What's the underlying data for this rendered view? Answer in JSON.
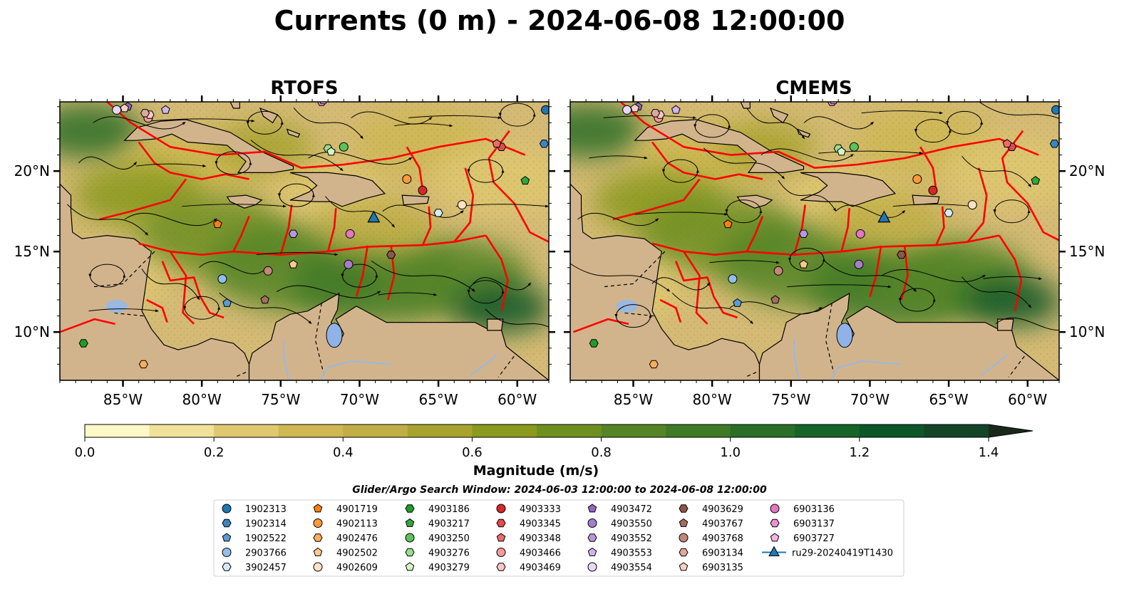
{
  "figure": {
    "title": "Currents (0 m) - 2024-06-08 12:00:00",
    "search_window": "Glider/Argo Search Window: 2024-06-03 12:00:00 to 2024-06-08 12:00:00"
  },
  "colors": {
    "land": "#d2b48c",
    "boundary": "#ff0000",
    "river": "#9ab8e0",
    "lake": "#8fb3e8",
    "glider": "#2077b4"
  },
  "colorbar": {
    "label": "Magnitude (m/s)",
    "ticks": [
      "0.0",
      "0.2",
      "0.4",
      "0.6",
      "0.8",
      "1.0",
      "1.2",
      "1.4"
    ],
    "levels": [
      0,
      0.1,
      0.2,
      0.3,
      0.4,
      0.5,
      0.6,
      0.7,
      0.8,
      0.9,
      1.0,
      1.1,
      1.2,
      1.3,
      1.4,
      1.5
    ],
    "colors": [
      "#fdf8c6",
      "#f0e29a",
      "#dfc870",
      "#cfb853",
      "#bfae45",
      "#a7a32e",
      "#8a9a1e",
      "#6e9020",
      "#558526",
      "#3f7a26",
      "#2a6e27",
      "#156428",
      "#0d5628",
      "#134426",
      "#173622",
      "#19281b"
    ],
    "extend": "max"
  },
  "chart_data": [
    {
      "type": "map",
      "title": "RTOFS",
      "variable": "Currents (0 m) magnitude",
      "units": "m/s",
      "xlim": [
        -89,
        -58
      ],
      "ylim": [
        7,
        24.3
      ],
      "xticks": [
        -85,
        -80,
        -75,
        -70,
        -65,
        -60
      ],
      "xticklabels": [
        "85°W",
        "80°W",
        "75°W",
        "70°W",
        "65°W",
        "60°W"
      ],
      "yticks": [
        10,
        15,
        20
      ],
      "yticklabels": [
        "10°N",
        "15°N",
        "20°N"
      ],
      "ytick_side": "left"
    },
    {
      "type": "map",
      "title": "CMEMS",
      "variable": "Currents (0 m) magnitude",
      "units": "m/s",
      "xlim": [
        -89,
        -58
      ],
      "ylim": [
        7,
        24.3
      ],
      "xticks": [
        -85,
        -80,
        -75,
        -70,
        -65,
        -60
      ],
      "xticklabels": [
        "85°W",
        "80°W",
        "75°W",
        "70°W",
        "65°W",
        "60°W"
      ],
      "yticks": [
        10,
        15,
        20
      ],
      "yticklabels": [
        "10°N",
        "15°N",
        "20°N"
      ],
      "ytick_side": "right"
    }
  ],
  "legend": [
    {
      "id": "1902313",
      "marker": "circle",
      "color": "#1f77b4"
    },
    {
      "id": "1902314",
      "marker": "hexagon",
      "color": "#3a86c0"
    },
    {
      "id": "1902522",
      "marker": "pentagon",
      "color": "#5a9bd5"
    },
    {
      "id": "2903766",
      "marker": "circle",
      "color": "#8fc1e8"
    },
    {
      "id": "3902457",
      "marker": "hexagon",
      "color": "#d6eaf8"
    },
    {
      "id": "4901719",
      "marker": "pentagon",
      "color": "#ff7f0e"
    },
    {
      "id": "4902113",
      "marker": "circle",
      "color": "#ff9a3c"
    },
    {
      "id": "4902476",
      "marker": "hexagon",
      "color": "#ffad5c"
    },
    {
      "id": "4902502",
      "marker": "pentagon",
      "color": "#ffc890"
    },
    {
      "id": "4902609",
      "marker": "circle",
      "color": "#ffe2c2"
    },
    {
      "id": "4903186",
      "marker": "hexagon",
      "color": "#1e9d2a"
    },
    {
      "id": "4903217",
      "marker": "pentagon",
      "color": "#33a838"
    },
    {
      "id": "4903250",
      "marker": "circle",
      "color": "#5cc25a"
    },
    {
      "id": "4903276",
      "marker": "hexagon",
      "color": "#98df8a"
    },
    {
      "id": "4903279",
      "marker": "pentagon",
      "color": "#d4f5c8"
    },
    {
      "id": "4903333",
      "marker": "circle",
      "color": "#d62728"
    },
    {
      "id": "4903345",
      "marker": "hexagon",
      "color": "#e34a4a"
    },
    {
      "id": "4903348",
      "marker": "pentagon",
      "color": "#ec6b6b"
    },
    {
      "id": "4903466",
      "marker": "circle",
      "color": "#f59a9a"
    },
    {
      "id": "4903469",
      "marker": "hexagon",
      "color": "#fbc6c6"
    },
    {
      "id": "4903472",
      "marker": "pentagon",
      "color": "#9467bd"
    },
    {
      "id": "4903550",
      "marker": "circle",
      "color": "#a47ecb"
    },
    {
      "id": "4903552",
      "marker": "hexagon",
      "color": "#b897da"
    },
    {
      "id": "4903553",
      "marker": "pentagon",
      "color": "#cfb6ea"
    },
    {
      "id": "4903554",
      "marker": "circle",
      "color": "#e6d8f6"
    },
    {
      "id": "4903629",
      "marker": "hexagon",
      "color": "#8c564b"
    },
    {
      "id": "4903767",
      "marker": "pentagon",
      "color": "#a56c60"
    },
    {
      "id": "4903768",
      "marker": "circle",
      "color": "#c0877a"
    },
    {
      "id": "6903134",
      "marker": "hexagon",
      "color": "#dfa89d"
    },
    {
      "id": "6903135",
      "marker": "pentagon",
      "color": "#f6d0c6"
    },
    {
      "id": "6903136",
      "marker": "circle",
      "color": "#e377c2"
    },
    {
      "id": "6903137",
      "marker": "hexagon",
      "color": "#ec92d1"
    },
    {
      "id": "6903727",
      "marker": "pentagon",
      "color": "#f5b3e0"
    },
    {
      "id": "ru29-20240419T1430",
      "marker": "triangle-line",
      "color": "#1f77b4"
    }
  ],
  "floats": [
    {
      "id": "1902313",
      "lon": -58.2,
      "lat": 23.8
    },
    {
      "id": "1902314",
      "lon": -58.3,
      "lat": 21.7
    },
    {
      "id": "1902522",
      "lon": -78.4,
      "lat": 11.8
    },
    {
      "id": "2903766",
      "lon": -78.7,
      "lat": 13.3
    },
    {
      "id": "3902457",
      "lon": -65.0,
      "lat": 17.4
    },
    {
      "id": "4901719",
      "lon": -79.0,
      "lat": 16.7
    },
    {
      "id": "4902113",
      "lon": -67.0,
      "lat": 19.5
    },
    {
      "id": "4902476",
      "lon": -83.7,
      "lat": 8.0
    },
    {
      "id": "4902502",
      "lon": -74.2,
      "lat": 14.2
    },
    {
      "id": "4902609",
      "lon": -63.5,
      "lat": 17.9
    },
    {
      "id": "4903186",
      "lon": -87.5,
      "lat": 9.3
    },
    {
      "id": "4903217",
      "lon": -59.5,
      "lat": 19.4
    },
    {
      "id": "4903250",
      "lon": -71.0,
      "lat": 21.5
    },
    {
      "id": "4903276",
      "lon": -72.0,
      "lat": 21.4
    },
    {
      "id": "4903279",
      "lon": -71.8,
      "lat": 21.2
    },
    {
      "id": "4903333",
      "lon": -66.0,
      "lat": 18.8
    },
    {
      "id": "4903345",
      "lon": -61.0,
      "lat": 21.5
    },
    {
      "id": "4903348",
      "lon": -61.3,
      "lat": 21.7
    },
    {
      "id": "4903466",
      "lon": -83.4,
      "lat": 23.3
    },
    {
      "id": "4903469",
      "lon": -83.3,
      "lat": 23.5
    },
    {
      "id": "4903472",
      "lon": -84.7,
      "lat": 24.0
    },
    {
      "id": "4903550",
      "lon": -70.7,
      "lat": 14.2
    },
    {
      "id": "4903552",
      "lon": -74.2,
      "lat": 16.1
    },
    {
      "id": "4903553",
      "lon": -82.3,
      "lat": 23.8
    },
    {
      "id": "4903554",
      "lon": -85.4,
      "lat": 23.8
    },
    {
      "id": "4903629",
      "lon": -68.0,
      "lat": 14.8
    },
    {
      "id": "4903767",
      "lon": -76.0,
      "lat": 12.0
    },
    {
      "id": "4903768",
      "lon": -75.8,
      "lat": 13.8
    },
    {
      "id": "6903134",
      "lon": -83.6,
      "lat": 23.6
    },
    {
      "id": "6903135",
      "lon": -84.9,
      "lat": 23.9
    },
    {
      "id": "6903136",
      "lon": -70.6,
      "lat": 16.1
    },
    {
      "id": "6903137",
      "lon": -72.4,
      "lat": 24.3
    },
    {
      "id": "6903727",
      "lon": -72.3,
      "lat": 24.4
    }
  ],
  "glider": {
    "id": "ru29-20240419T1430",
    "lon": -69.1,
    "lat": 17.1
  }
}
